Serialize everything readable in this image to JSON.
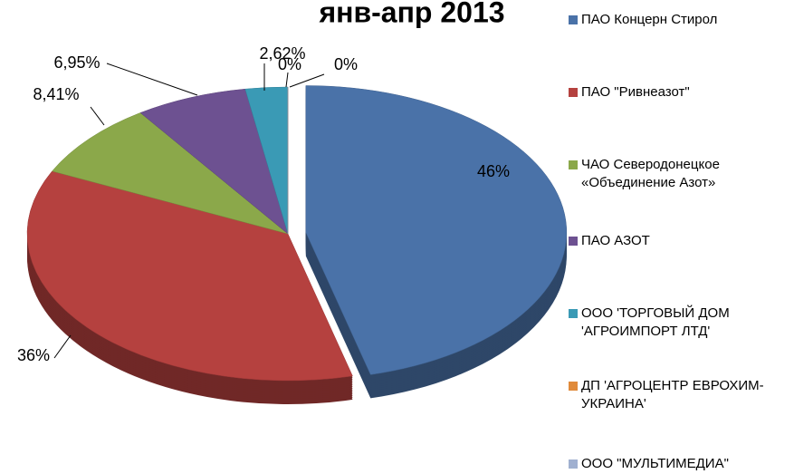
{
  "chart_data": {
    "type": "pie",
    "title": "янв-апр 2013",
    "categories": [
      "ПАО Концерн Стирол",
      "ПАО \"Ривнеазот\"",
      "ЧАО Северодонецкое «Объединение Азот»",
      "ПАО АЗОТ",
      "ООО 'ТОРГОВЫЙ ДОМ 'АГРОИМПОРТ ЛТД'",
      "ДП 'АГРОЦЕНТР ЕВРОХИМ-УКРАИНА'",
      "ООО \"МУЛЬТИМЕДИА\""
    ],
    "values": [
      46,
      36,
      8.41,
      6.95,
      2.62,
      0,
      0
    ],
    "value_labels": [
      "46%",
      "36%",
      "8,41%",
      "6,95%",
      "2,62%",
      "0%",
      "0%"
    ],
    "colors": [
      "#4a72a8",
      "#b5413f",
      "#8ba84a",
      "#6d5191",
      "#3a9ab5",
      "#e08a3a",
      "#a0b0d0"
    ],
    "legend": "right"
  }
}
